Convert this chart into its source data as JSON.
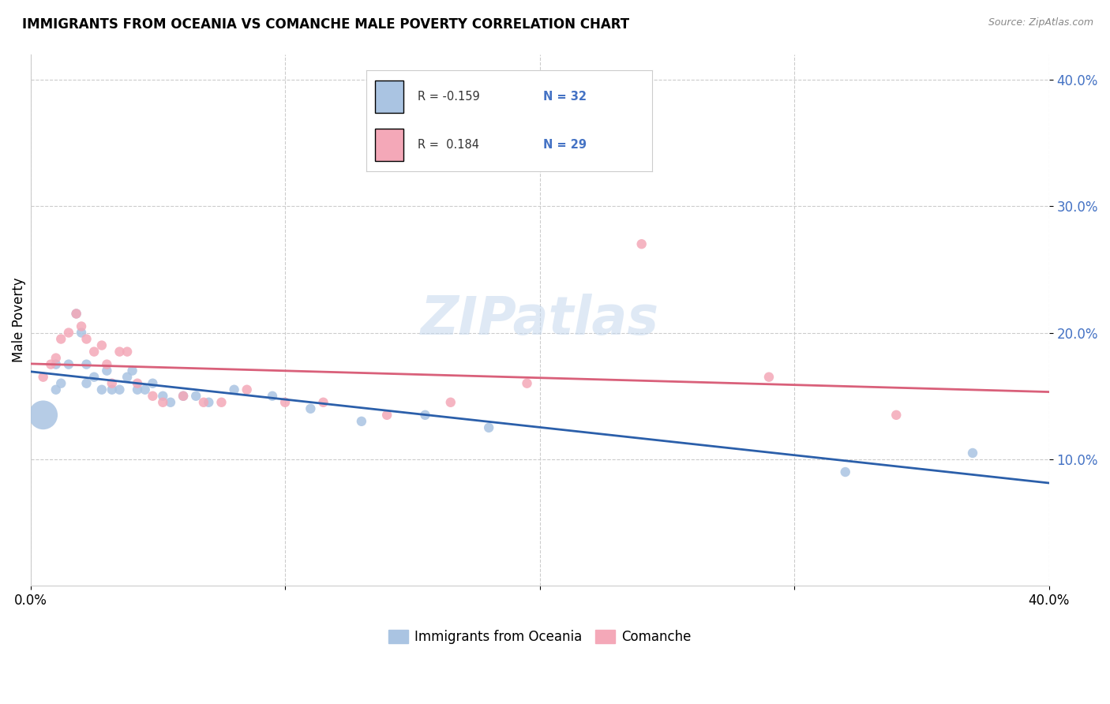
{
  "title": "IMMIGRANTS FROM OCEANIA VS COMANCHE MALE POVERTY CORRELATION CHART",
  "source": "Source: ZipAtlas.com",
  "ylabel": "Male Poverty",
  "legend_label1": "Immigrants from Oceania",
  "legend_label2": "Comanche",
  "r1": -0.159,
  "n1": 32,
  "r2": 0.184,
  "n2": 29,
  "color_blue": "#aac4e2",
  "color_pink": "#f4a8b8",
  "line_color_blue": "#2b5faa",
  "line_color_pink": "#d9607a",
  "watermark": "ZIPatlas",
  "blue_points_x": [
    0.005,
    0.01,
    0.01,
    0.012,
    0.015,
    0.018,
    0.02,
    0.022,
    0.022,
    0.025,
    0.028,
    0.03,
    0.032,
    0.035,
    0.038,
    0.04,
    0.042,
    0.045,
    0.048,
    0.052,
    0.055,
    0.06,
    0.065,
    0.07,
    0.08,
    0.095,
    0.11,
    0.13,
    0.155,
    0.18,
    0.32,
    0.37
  ],
  "blue_points_y": [
    0.135,
    0.175,
    0.155,
    0.16,
    0.175,
    0.215,
    0.2,
    0.175,
    0.16,
    0.165,
    0.155,
    0.17,
    0.155,
    0.155,
    0.165,
    0.17,
    0.155,
    0.155,
    0.16,
    0.15,
    0.145,
    0.15,
    0.15,
    0.145,
    0.155,
    0.15,
    0.14,
    0.13,
    0.135,
    0.125,
    0.09,
    0.105
  ],
  "blue_sizes": [
    700,
    80,
    80,
    80,
    80,
    80,
    80,
    80,
    80,
    80,
    80,
    80,
    80,
    80,
    80,
    80,
    80,
    80,
    80,
    80,
    80,
    80,
    80,
    80,
    80,
    80,
    80,
    80,
    80,
    80,
    80,
    80
  ],
  "pink_points_x": [
    0.005,
    0.008,
    0.01,
    0.012,
    0.015,
    0.018,
    0.02,
    0.022,
    0.025,
    0.028,
    0.03,
    0.032,
    0.035,
    0.038,
    0.042,
    0.048,
    0.052,
    0.06,
    0.068,
    0.075,
    0.085,
    0.1,
    0.115,
    0.14,
    0.165,
    0.195,
    0.24,
    0.29,
    0.34
  ],
  "pink_points_y": [
    0.165,
    0.175,
    0.18,
    0.195,
    0.2,
    0.215,
    0.205,
    0.195,
    0.185,
    0.19,
    0.175,
    0.16,
    0.185,
    0.185,
    0.16,
    0.15,
    0.145,
    0.15,
    0.145,
    0.145,
    0.155,
    0.145,
    0.145,
    0.135,
    0.145,
    0.16,
    0.27,
    0.165,
    0.135
  ],
  "pink_sizes": [
    80,
    80,
    80,
    80,
    80,
    80,
    80,
    80,
    80,
    80,
    80,
    80,
    80,
    80,
    80,
    80,
    80,
    80,
    80,
    80,
    80,
    80,
    80,
    80,
    80,
    80,
    80,
    80,
    80
  ],
  "xlim": [
    0.0,
    0.4
  ],
  "ylim": [
    0.0,
    0.42
  ],
  "yticks": [
    0.1,
    0.2,
    0.3,
    0.4
  ],
  "ytick_labels": [
    "10.0%",
    "20.0%",
    "30.0%",
    "40.0%"
  ],
  "xticks": [
    0.0,
    0.1,
    0.2,
    0.3,
    0.4
  ],
  "xtick_labels": [
    "0.0%",
    "",
    "",
    "",
    "40.0%"
  ]
}
